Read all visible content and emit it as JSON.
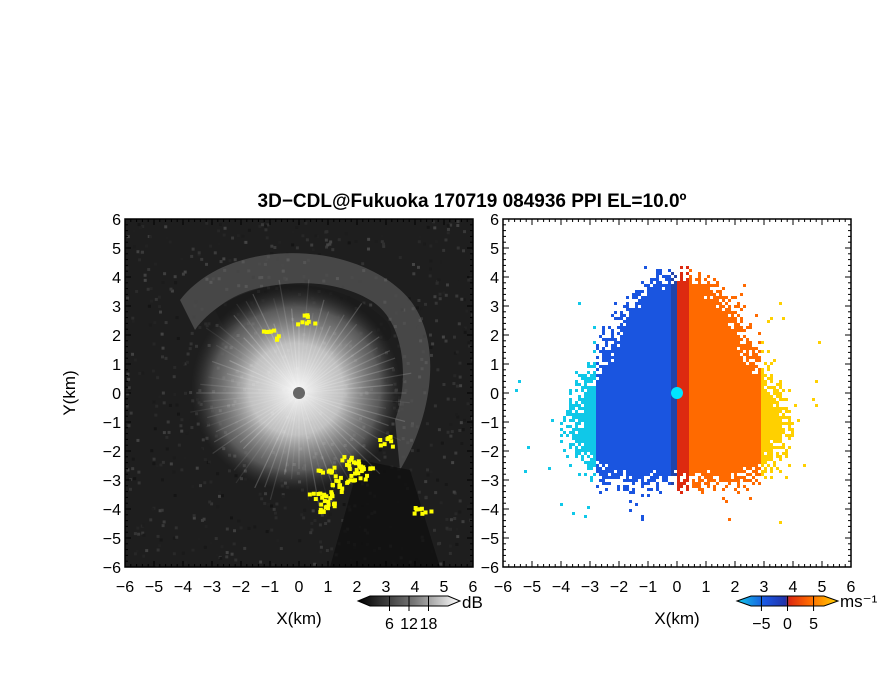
{
  "title": "3D−CDL@Fukuoka 170719 084936 PPI EL=10.0º",
  "chart_data": [
    {
      "type": "heatmap",
      "panel": "reflectivity",
      "xlabel": "X(km)",
      "ylabel": "Y(km)",
      "xlim": [
        -6,
        6
      ],
      "ylim": [
        -6,
        6
      ],
      "x_ticks": [
        "−6",
        "−5",
        "−4",
        "−3",
        "−2",
        "−1",
        "0",
        "1",
        "2",
        "3",
        "4",
        "5",
        "6"
      ],
      "y_ticks": [
        "−6",
        "−5",
        "−4",
        "−3",
        "−2",
        "−1",
        "0",
        "1",
        "2",
        "3",
        "4",
        "5",
        "6"
      ],
      "colormap": "grayscale with yellow highlights",
      "colorbar": {
        "unit": "dB",
        "tick_labels": [
          "6",
          "12",
          "18"
        ],
        "range": [
          0,
          24
        ]
      },
      "echo_center_km": [
        0,
        0
      ],
      "echo_radius_km": 3.5,
      "highlight_color": "#ffff00",
      "highlight_points_km": [
        [
          1.9,
          -2.4
        ],
        [
          2.0,
          -2.8
        ],
        [
          1.5,
          -3.0
        ],
        [
          1.2,
          -3.3
        ],
        [
          1.1,
          -3.7
        ],
        [
          0.9,
          -3.9
        ],
        [
          0.5,
          -3.6
        ],
        [
          1.7,
          -2.3
        ],
        [
          2.2,
          -2.5
        ],
        [
          3.0,
          -1.6
        ],
        [
          4.2,
          -3.9
        ],
        [
          -1.0,
          2.1
        ],
        [
          0.2,
          2.6
        ],
        [
          0.9,
          -2.6
        ]
      ]
    },
    {
      "type": "heatmap",
      "panel": "doppler velocity",
      "xlabel": "X(km)",
      "ylabel": "",
      "xlim": [
        -6,
        6
      ],
      "ylim": [
        -6,
        6
      ],
      "x_ticks": [
        "−6",
        "−5",
        "−4",
        "−3",
        "−2",
        "−1",
        "0",
        "1",
        "2",
        "3",
        "4",
        "5",
        "6"
      ],
      "y_ticks": [
        "−6",
        "−5",
        "−4",
        "−3",
        "−2",
        "−1",
        "0",
        "1",
        "2",
        "3",
        "4",
        "5",
        "6"
      ],
      "colormap": "cyan-blue to red-orange-yellow",
      "colorbar": {
        "unit": "ms⁻¹",
        "tick_labels": [
          "−5",
          "0",
          "5"
        ],
        "range": [
          -7,
          7
        ]
      },
      "negative_side": "west",
      "positive_side": "east",
      "colors": {
        "strong_negative": "#10c8e8",
        "negative": "#1a55e0",
        "near_zero_negative": "#2244aa",
        "near_zero_positive": "#dd2a10",
        "positive": "#ff6a00",
        "strong_positive": "#ffd000",
        "radar_marker": "#00e5ff"
      }
    }
  ]
}
